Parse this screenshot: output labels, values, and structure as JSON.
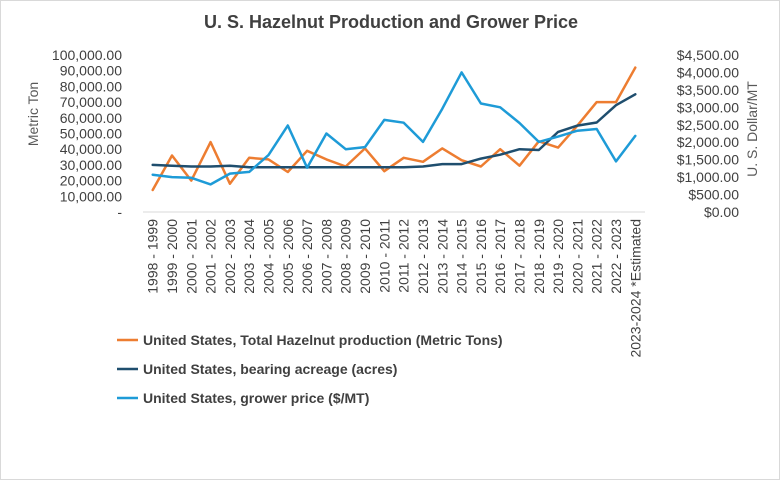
{
  "chart_data": {
    "type": "line",
    "title": "U. S. Hazelnut Production and Grower Price",
    "ylabel": "Metric Ton",
    "y2label": "U. S. Dollar/MT",
    "ylim": [
      0,
      100000
    ],
    "y2lim": [
      0,
      4500
    ],
    "y_ticks": [
      "-",
      "10,000.00",
      "20,000.00",
      "30,000.00",
      "40,000.00",
      "50,000.00",
      "60,000.00",
      "70,000.00",
      "80,000.00",
      "90,000.00",
      "100,000.00"
    ],
    "y2_ticks": [
      "$0.00",
      "$500.00",
      "$1,000.00",
      "$1,500.00",
      "$2,000.00",
      "$2,500.00",
      "$3,000.00",
      "$3,500.00",
      "$4,000.00",
      "$4,500.00"
    ],
    "categories": [
      "1998 - 1999",
      "1999 - 2000",
      "2000 - 2001",
      "2001 - 2002",
      "2002 - 2003",
      "2003 - 2004",
      "2004 - 2005",
      "2005 - 2006",
      "2006 - 2007",
      "2007 - 2008",
      "2008 - 2009",
      "2009 - 2010",
      "2010 - 2011",
      "2011 - 2012",
      "2012 - 2013",
      "2013 - 2014",
      "2014 - 2015",
      "2015 - 2016",
      "2016 - 2017",
      "2017 - 2018",
      "2018 - 2019",
      "2019 - 2020",
      "2020 - 2021",
      "2021 - 2022",
      "2022 - 2023",
      "2023-2024 *Estimated"
    ],
    "series": [
      {
        "name": "United States, Total Hazelnut production (Metric Tons)",
        "color": "#ed7d31",
        "axis": "left",
        "values": [
          14000,
          36000,
          20000,
          44500,
          18000,
          34500,
          33500,
          25500,
          39000,
          33500,
          29000,
          40500,
          26000,
          34500,
          32000,
          40500,
          33000,
          29000,
          40000,
          29500,
          45000,
          41000,
          55000,
          70000,
          70000,
          92000
        ]
      },
      {
        "name": "United States, bearing acreage (acres)",
        "color": "#1f4e6e",
        "axis": "left",
        "values": [
          30000,
          29500,
          29000,
          29000,
          29500,
          28500,
          28500,
          28500,
          28500,
          28500,
          28500,
          28500,
          28500,
          28500,
          29000,
          30500,
          30500,
          34000,
          36500,
          40000,
          39500,
          51000,
          55000,
          57000,
          68000,
          75000
        ]
      },
      {
        "name": "United States, grower price ($/MT)",
        "color": "#1e9bd7",
        "axis": "right",
        "values": [
          1070,
          1000,
          980,
          790,
          1100,
          1150,
          1630,
          2480,
          1270,
          2250,
          1800,
          1860,
          2640,
          2560,
          2010,
          2960,
          4000,
          3110,
          3000,
          2550,
          2010,
          2160,
          2330,
          2380,
          1450,
          2180
        ]
      }
    ]
  }
}
